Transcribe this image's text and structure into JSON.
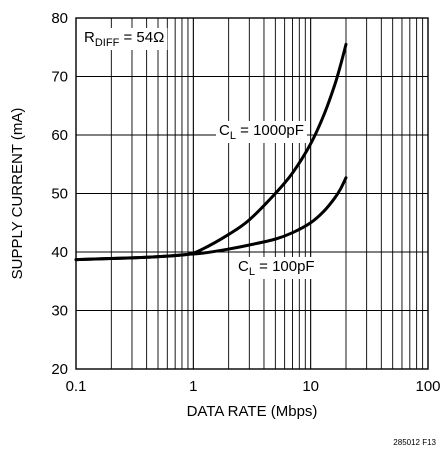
{
  "chart_data": {
    "type": "line",
    "xlabel": "DATA RATE (Mbps)",
    "ylabel": "SUPPLY CURRENT (mA)",
    "xscale": "log",
    "xlim": [
      0.1,
      100
    ],
    "ylim": [
      20,
      80
    ],
    "grid": true,
    "x_ticks": [
      "0.1",
      "1",
      "10",
      "100"
    ],
    "y_ticks": [
      "20",
      "30",
      "40",
      "50",
      "60",
      "70",
      "80"
    ],
    "condition": {
      "main": "R",
      "sub": "DIFF",
      "rest": " = 54Ω"
    },
    "series": [
      {
        "label_main": "C",
        "label_sub": "L",
        "label_rest": " = 1000pF",
        "x": [
          0.1,
          0.3,
          0.6,
          0.9,
          1.2,
          2,
          3,
          5,
          7,
          10,
          13,
          16,
          18,
          20
        ],
        "y": [
          38.7,
          39.0,
          39.3,
          39.6,
          40.5,
          43.0,
          45.5,
          50.0,
          53.5,
          58.5,
          63.5,
          68.5,
          72.0,
          75.5
        ]
      },
      {
        "label_main": "C",
        "label_sub": "L",
        "label_rest": " = 100pF",
        "x": [
          0.1,
          0.3,
          0.6,
          0.9,
          1.2,
          2,
          3,
          5,
          7,
          10,
          13,
          16,
          18,
          20
        ],
        "y": [
          38.7,
          39.0,
          39.3,
          39.6,
          39.8,
          40.5,
          41.2,
          42.2,
          43.3,
          45.0,
          47.0,
          49.2,
          50.8,
          52.7
        ]
      }
    ]
  },
  "figure_id": "285012 F13"
}
